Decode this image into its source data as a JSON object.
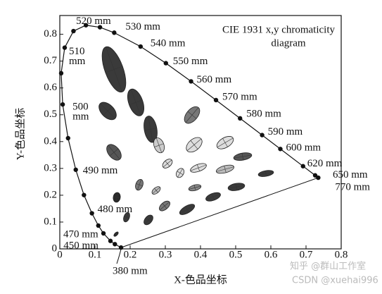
{
  "chart_data": {
    "type": "chromaticity",
    "title_lines": [
      "CIE 1931 x,y chromaticity",
      "diagram"
    ],
    "xlabel": "X-色品坐标",
    "ylabel": "Y-色品坐标",
    "xlim": [
      0,
      0.8
    ],
    "ylim": [
      0,
      0.87
    ],
    "xticks": [
      0,
      0.1,
      0.2,
      0.3,
      0.4,
      0.5,
      0.6,
      0.7,
      0.8
    ],
    "yticks": [
      0,
      0.1,
      0.2,
      0.3,
      0.4,
      0.5,
      0.6,
      0.7,
      0.8
    ],
    "locus_color": "#111",
    "locus": {
      "x": [
        0.1741,
        0.1566,
        0.144,
        0.1241,
        0.1096,
        0.0913,
        0.0687,
        0.0454,
        0.0235,
        0.0082,
        0.0039,
        0.0139,
        0.0389,
        0.0743,
        0.1142,
        0.1547,
        0.2296,
        0.3016,
        0.3731,
        0.4441,
        0.5125,
        0.5752,
        0.627,
        0.6915,
        0.726,
        0.7347
      ],
      "y": [
        0.005,
        0.0177,
        0.0297,
        0.0578,
        0.0868,
        0.1327,
        0.2007,
        0.295,
        0.4127,
        0.5384,
        0.6548,
        0.7502,
        0.812,
        0.8338,
        0.8262,
        0.8059,
        0.7543,
        0.6923,
        0.6245,
        0.5547,
        0.4866,
        0.4242,
        0.3725,
        0.3083,
        0.274,
        0.2653
      ],
      "labels": [
        [
          "380 mm"
        ],
        [
          "450 mm"
        ],
        null,
        [
          "470 mm"
        ],
        null,
        [
          "480 mm"
        ],
        null,
        [
          "490 mm"
        ],
        null,
        [
          "500",
          "mm"
        ],
        null,
        [
          "510",
          "mm"
        ],
        null,
        [
          "520 mm"
        ],
        null,
        [
          "530 mm"
        ],
        [
          "540 mm"
        ],
        [
          "550 mm"
        ],
        [
          "560 mm"
        ],
        [
          "570 mm"
        ],
        [
          "580 mm"
        ],
        [
          "590 mm"
        ],
        [
          "600 mm"
        ],
        [
          "620 mm"
        ],
        [
          "650 mm"
        ],
        [
          "770 mm"
        ]
      ]
    },
    "ellipses": [
      {
        "x": 0.154,
        "y": 0.669,
        "a": 0.068,
        "b": 0.026,
        "angle": 110,
        "color": "#3a3a3a"
      },
      {
        "x": 0.136,
        "y": 0.514,
        "a": 0.03,
        "b": 0.018,
        "angle": 135,
        "color": "#3a3a3a"
      },
      {
        "x": 0.216,
        "y": 0.546,
        "a": 0.04,
        "b": 0.02,
        "angle": 110,
        "color": "#3a3a3a"
      },
      {
        "x": 0.258,
        "y": 0.446,
        "a": 0.038,
        "b": 0.018,
        "angle": 100,
        "color": "#3a3a3a"
      },
      {
        "x": 0.154,
        "y": 0.36,
        "a": 0.026,
        "b": 0.016,
        "angle": 130,
        "color": "#555555"
      },
      {
        "x": 0.376,
        "y": 0.499,
        "a": 0.028,
        "b": 0.016,
        "angle": 50,
        "color": "#777777"
      },
      {
        "x": 0.282,
        "y": 0.386,
        "a": 0.022,
        "b": 0.014,
        "angle": 110,
        "color": "#cccccc"
      },
      {
        "x": 0.382,
        "y": 0.388,
        "a": 0.026,
        "b": 0.016,
        "angle": 40,
        "color": "#dddddd"
      },
      {
        "x": 0.47,
        "y": 0.396,
        "a": 0.026,
        "b": 0.014,
        "angle": 30,
        "color": "#dddddd"
      },
      {
        "x": 0.52,
        "y": 0.344,
        "a": 0.026,
        "b": 0.01,
        "angle": 10,
        "color": "#555555"
      },
      {
        "x": 0.306,
        "y": 0.318,
        "a": 0.016,
        "b": 0.01,
        "angle": 40,
        "color": "#dddddd"
      },
      {
        "x": 0.394,
        "y": 0.302,
        "a": 0.024,
        "b": 0.01,
        "angle": 20,
        "color": "#dddddd"
      },
      {
        "x": 0.47,
        "y": 0.297,
        "a": 0.026,
        "b": 0.01,
        "angle": 15,
        "color": "#bbbbbb"
      },
      {
        "x": 0.586,
        "y": 0.281,
        "a": 0.022,
        "b": 0.008,
        "angle": 10,
        "color": "#3a3a3a"
      },
      {
        "x": 0.342,
        "y": 0.283,
        "a": 0.014,
        "b": 0.01,
        "angle": 60,
        "color": "#dddddd"
      },
      {
        "x": 0.226,
        "y": 0.239,
        "a": 0.016,
        "b": 0.01,
        "angle": 70,
        "color": "#777777"
      },
      {
        "x": 0.274,
        "y": 0.218,
        "a": 0.014,
        "b": 0.008,
        "angle": 40,
        "color": "#bbbbbb"
      },
      {
        "x": 0.384,
        "y": 0.228,
        "a": 0.018,
        "b": 0.008,
        "angle": 15,
        "color": "#888888"
      },
      {
        "x": 0.502,
        "y": 0.231,
        "a": 0.024,
        "b": 0.01,
        "angle": 10,
        "color": "#3a3a3a"
      },
      {
        "x": 0.436,
        "y": 0.194,
        "a": 0.022,
        "b": 0.01,
        "angle": 20,
        "color": "#3a3a3a"
      },
      {
        "x": 0.298,
        "y": 0.16,
        "a": 0.018,
        "b": 0.01,
        "angle": 40,
        "color": "#777777"
      },
      {
        "x": 0.362,
        "y": 0.147,
        "a": 0.024,
        "b": 0.01,
        "angle": 30,
        "color": "#3a3a3a"
      },
      {
        "x": 0.252,
        "y": 0.108,
        "a": 0.016,
        "b": 0.01,
        "angle": 50,
        "color": "#3a3a3a"
      },
      {
        "x": 0.19,
        "y": 0.118,
        "a": 0.014,
        "b": 0.008,
        "angle": 70,
        "color": "#3a3a3a"
      },
      {
        "x": 0.162,
        "y": 0.192,
        "a": 0.014,
        "b": 0.01,
        "angle": 80,
        "color": "#2a2a2a"
      },
      {
        "x": 0.16,
        "y": 0.055,
        "a": 0.008,
        "b": 0.004,
        "angle": 45,
        "color": "#2a2a2a"
      }
    ]
  },
  "watermark": [
    "知乎 @群山工作室",
    "CSDN @xuehai996"
  ]
}
